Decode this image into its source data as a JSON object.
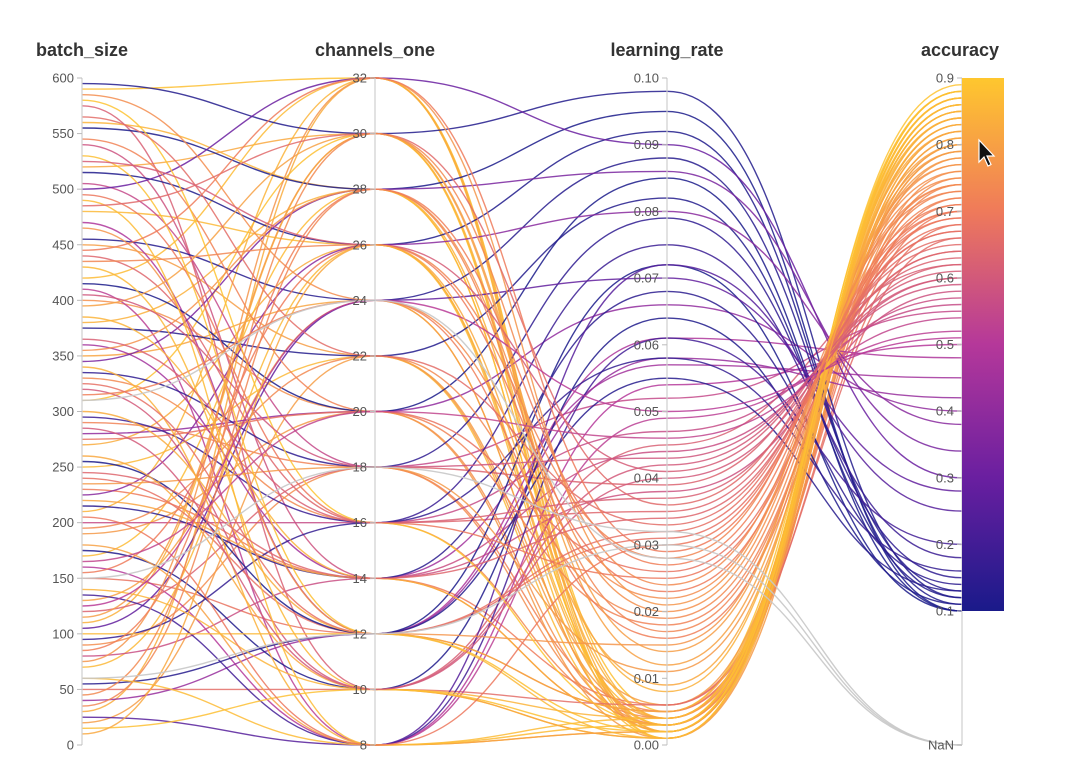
{
  "chart_data": {
    "type": "parallel_coordinates",
    "title": "",
    "axes": [
      {
        "name": "batch_size",
        "ticks": [
          "600",
          "550",
          "500",
          "450",
          "400",
          "350",
          "300",
          "250",
          "200",
          "150",
          "100",
          "50",
          "0"
        ]
      },
      {
        "name": "channels_one",
        "ticks": [
          "32",
          "30",
          "28",
          "26",
          "24",
          "22",
          "20",
          "18",
          "16",
          "14",
          "12",
          "10",
          "8"
        ]
      },
      {
        "name": "learning_rate",
        "ticks": [
          "0.10",
          "0.09",
          "0.08",
          "0.07",
          "0.06",
          "0.05",
          "0.04",
          "0.03",
          "0.02",
          "0.01",
          "0.00"
        ]
      },
      {
        "name": "accuracy",
        "ticks": [
          "0.9",
          "0.8",
          "0.7",
          "0.6",
          "0.5",
          "0.4",
          "0.3",
          "0.2",
          "0.1",
          "NaN"
        ]
      }
    ],
    "ranges": {
      "batch_size": [
        0,
        600
      ],
      "channels_one": [
        8,
        32
      ],
      "learning_rate": [
        0,
        0.1
      ],
      "accuracy": [
        0.1,
        0.9
      ]
    },
    "colorbar": {
      "variable": "accuracy",
      "range": [
        0.1,
        0.9
      ],
      "low_color": "#1a1a8a",
      "mid_color": "#b5389a",
      "high_color": "#ffc72e"
    },
    "runs": [
      [
        590,
        32,
        0.005,
        0.88
      ],
      [
        560,
        28,
        0.003,
        0.85
      ],
      [
        520,
        30,
        0.002,
        0.82
      ],
      [
        480,
        26,
        0.004,
        0.86
      ],
      [
        450,
        22,
        0.006,
        0.79
      ],
      [
        420,
        32,
        0.001,
        0.87
      ],
      [
        400,
        20,
        0.003,
        0.76
      ],
      [
        380,
        28,
        0.008,
        0.84
      ],
      [
        350,
        24,
        0.002,
        0.81
      ],
      [
        330,
        16,
        0.004,
        0.74
      ],
      [
        310,
        30,
        0.001,
        0.88
      ],
      [
        290,
        18,
        0.005,
        0.72
      ],
      [
        270,
        26,
        0.003,
        0.83
      ],
      [
        250,
        22,
        0.002,
        0.86
      ],
      [
        230,
        14,
        0.006,
        0.7
      ],
      [
        210,
        32,
        0.004,
        0.85
      ],
      [
        190,
        20,
        0.001,
        0.78
      ],
      [
        170,
        28,
        0.003,
        0.87
      ],
      [
        150,
        12,
        0.005,
        0.68
      ],
      [
        130,
        24,
        0.002,
        0.8
      ],
      [
        110,
        30,
        0.004,
        0.84
      ],
      [
        90,
        18,
        0.003,
        0.75
      ],
      [
        70,
        26,
        0.001,
        0.86
      ],
      [
        50,
        10,
        0.006,
        0.66
      ],
      [
        30,
        32,
        0.002,
        0.83
      ],
      [
        20,
        22,
        0.004,
        0.79
      ],
      [
        575,
        10,
        0.045,
        0.62
      ],
      [
        540,
        14,
        0.038,
        0.58
      ],
      [
        505,
        18,
        0.052,
        0.55
      ],
      [
        470,
        12,
        0.061,
        0.48
      ],
      [
        440,
        16,
        0.035,
        0.64
      ],
      [
        410,
        8,
        0.049,
        0.52
      ],
      [
        360,
        14,
        0.057,
        0.45
      ],
      [
        320,
        10,
        0.042,
        0.6
      ],
      [
        280,
        20,
        0.066,
        0.4
      ],
      [
        240,
        12,
        0.031,
        0.67
      ],
      [
        200,
        16,
        0.047,
        0.56
      ],
      [
        160,
        8,
        0.054,
        0.5
      ],
      [
        120,
        18,
        0.039,
        0.63
      ],
      [
        80,
        14,
        0.044,
        0.57
      ],
      [
        40,
        12,
        0.058,
        0.42
      ],
      [
        595,
        30,
        0.098,
        0.12
      ],
      [
        555,
        28,
        0.095,
        0.1
      ],
      [
        515,
        26,
        0.092,
        0.11
      ],
      [
        455,
        24,
        0.088,
        0.13
      ],
      [
        415,
        20,
        0.085,
        0.1
      ],
      [
        375,
        22,
        0.082,
        0.12
      ],
      [
        335,
        18,
        0.079,
        0.15
      ],
      [
        295,
        16,
        0.075,
        0.18
      ],
      [
        255,
        12,
        0.072,
        0.1
      ],
      [
        215,
        14,
        0.068,
        0.14
      ],
      [
        175,
        10,
        0.064,
        0.11
      ],
      [
        135,
        8,
        0.061,
        0.2
      ],
      [
        95,
        16,
        0.058,
        0.16
      ],
      [
        55,
        12,
        0.055,
        0.13
      ],
      [
        25,
        8,
        0.072,
        0.25
      ],
      [
        500,
        32,
        0.09,
        0.3
      ],
      [
        345,
        28,
        0.086,
        0.34
      ],
      [
        225,
        26,
        0.08,
        0.38
      ],
      [
        105,
        24,
        0.07,
        0.28
      ],
      [
        585,
        24,
        0.022,
        0.75
      ],
      [
        545,
        20,
        0.018,
        0.72
      ],
      [
        495,
        16,
        0.025,
        0.69
      ],
      [
        465,
        12,
        0.015,
        0.77
      ],
      [
        435,
        26,
        0.028,
        0.73
      ],
      [
        395,
        30,
        0.012,
        0.8
      ],
      [
        355,
        28,
        0.02,
        0.76
      ],
      [
        315,
        24,
        0.016,
        0.71
      ],
      [
        275,
        20,
        0.026,
        0.68
      ],
      [
        235,
        18,
        0.011,
        0.78
      ],
      [
        195,
        22,
        0.019,
        0.74
      ],
      [
        155,
        26,
        0.023,
        0.7
      ],
      [
        115,
        30,
        0.014,
        0.79
      ],
      [
        75,
        32,
        0.021,
        0.77
      ],
      [
        35,
        28,
        0.017,
        0.73
      ],
      [
        580,
        16,
        0.003,
        0.89
      ],
      [
        530,
        12,
        0.002,
        0.88
      ],
      [
        490,
        8,
        0.004,
        0.87
      ],
      [
        430,
        10,
        0.001,
        0.86
      ],
      [
        385,
        14,
        0.003,
        0.85
      ],
      [
        340,
        8,
        0.002,
        0.84
      ],
      [
        300,
        12,
        0.005,
        0.83
      ],
      [
        260,
        10,
        0.001,
        0.82
      ],
      [
        220,
        14,
        0.003,
        0.81
      ],
      [
        180,
        8,
        0.002,
        0.8
      ],
      [
        140,
        10,
        0.004,
        0.85
      ],
      [
        100,
        12,
        0.001,
        0.86
      ],
      [
        60,
        8,
        0.003,
        0.87
      ],
      [
        15,
        10,
        0.002,
        0.88
      ],
      [
        565,
        22,
        0.033,
        0.66
      ],
      [
        525,
        26,
        0.041,
        0.61
      ],
      [
        485,
        30,
        0.036,
        0.65
      ],
      [
        445,
        32,
        0.029,
        0.7
      ],
      [
        405,
        18,
        0.043,
        0.59
      ],
      [
        365,
        16,
        0.037,
        0.62
      ],
      [
        325,
        12,
        0.032,
        0.67
      ],
      [
        285,
        10,
        0.04,
        0.6
      ],
      [
        245,
        14,
        0.034,
        0.64
      ],
      [
        205,
        8,
        0.03,
        0.69
      ],
      [
        165,
        20,
        0.046,
        0.54
      ],
      [
        125,
        24,
        0.05,
        0.51
      ],
      [
        85,
        28,
        0.027,
        0.71
      ],
      [
        45,
        30,
        0.024,
        0.74
      ],
      [
        10,
        26,
        0.009,
        0.82
      ],
      [
        310,
        24,
        0.028,
        null
      ],
      [
        150,
        18,
        0.032,
        null
      ],
      [
        60,
        12,
        0.03,
        null
      ]
    ]
  }
}
